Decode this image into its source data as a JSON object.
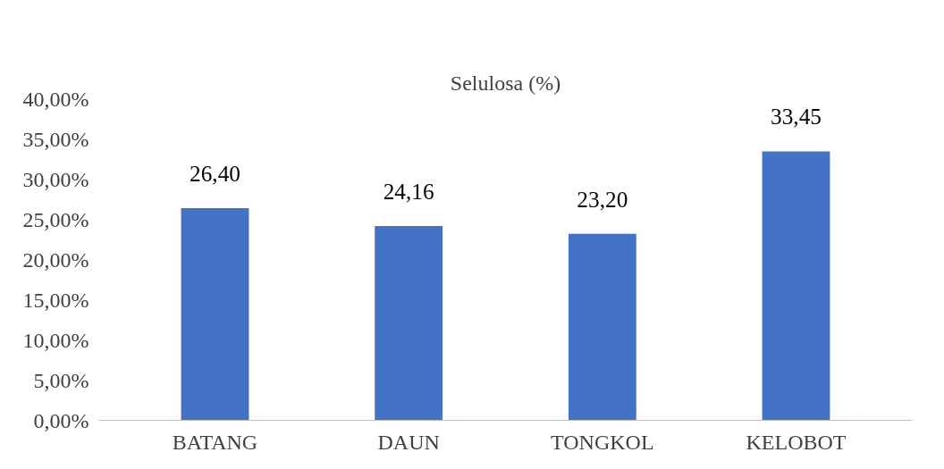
{
  "chart_data": {
    "type": "bar",
    "title": "Selulosa (%)",
    "categories": [
      "BATANG",
      "DAUN",
      "TONGKOL",
      "KELOBOT"
    ],
    "values": [
      26.4,
      24.16,
      23.2,
      33.45
    ],
    "color": "#4472c4",
    "value_labels": [
      "26,40",
      "24,16",
      "23,20",
      "33,45"
    ],
    "ylim": [
      0,
      40
    ],
    "yticks": [
      {
        "value": 0,
        "label": "0,00%"
      },
      {
        "value": 5,
        "label": "5,00%"
      },
      {
        "value": 10,
        "label": "10,00%"
      },
      {
        "value": 15,
        "label": "15,00%"
      },
      {
        "value": 20,
        "label": "20,00%"
      },
      {
        "value": 25,
        "label": "25,00%"
      },
      {
        "value": 30,
        "label": "30,00%"
      },
      {
        "value": 35,
        "label": "35,00%"
      },
      {
        "value": 40,
        "label": "40,00%"
      }
    ],
    "grid": false
  }
}
